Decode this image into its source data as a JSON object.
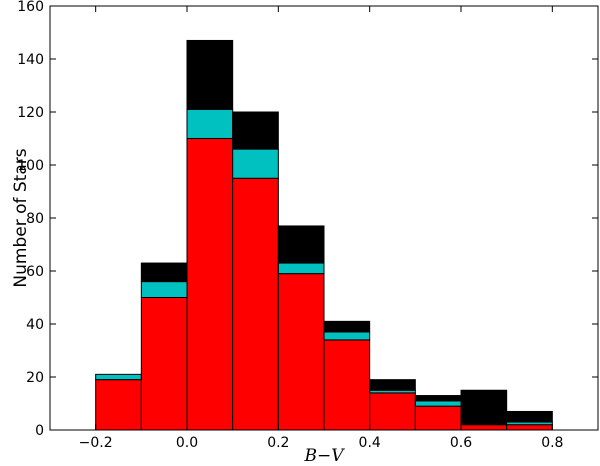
{
  "chart_data": {
    "type": "bar",
    "stacked": true,
    "bin_edges": [
      -0.2,
      -0.1,
      0.0,
      0.1,
      0.2,
      0.3,
      0.4,
      0.5,
      0.6,
      0.7,
      0.8
    ],
    "series": [
      {
        "color": "#ff0000",
        "values": [
          19,
          50,
          110,
          95,
          59,
          34,
          14,
          9,
          2,
          2
        ]
      },
      {
        "color": "#00c0c0",
        "values": [
          2,
          6,
          11,
          11,
          4,
          3,
          1,
          2,
          0,
          1
        ]
      },
      {
        "color": "#000000",
        "values": [
          0,
          7,
          26,
          14,
          14,
          4,
          4,
          2,
          13,
          4
        ]
      }
    ],
    "xlabel": "B−V",
    "ylabel": "Number of Stars",
    "xlim": [
      -0.3,
      0.9
    ],
    "ylim": [
      0,
      160
    ],
    "xticks": [
      -0.2,
      0.0,
      0.2,
      0.4,
      0.6,
      0.8
    ],
    "xtick_labels": [
      "−0.2",
      "0.0",
      "0.2",
      "0.4",
      "0.6",
      "0.8"
    ],
    "yticks": [
      0,
      20,
      40,
      60,
      80,
      100,
      120,
      140,
      160
    ],
    "ytick_labels": [
      "0",
      "20",
      "40",
      "60",
      "80",
      "100",
      "120",
      "140",
      "160"
    ],
    "grid": false,
    "legend": "none"
  }
}
